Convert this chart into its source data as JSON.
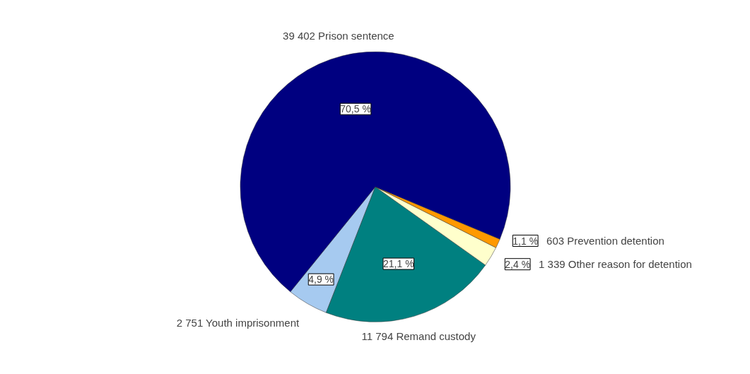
{
  "chart_data": {
    "type": "pie",
    "categories": [
      "2 751 Youth imprisonment",
      "11 794 Remand custody",
      "1 339 Other reason for detention",
      "603 Prevention detention",
      "39 402 Prison sentence"
    ],
    "values": [
      4.9,
      21.1,
      2.4,
      1.1,
      70.5
    ],
    "colors": [
      "#a6caf0",
      "#008080",
      "#ffffcc",
      "#ff9900",
      "#000080"
    ],
    "value_labels": [
      "4,9 %",
      "21,1 %",
      "2,4 %",
      "1,1 %",
      "70,5 %"
    ]
  }
}
